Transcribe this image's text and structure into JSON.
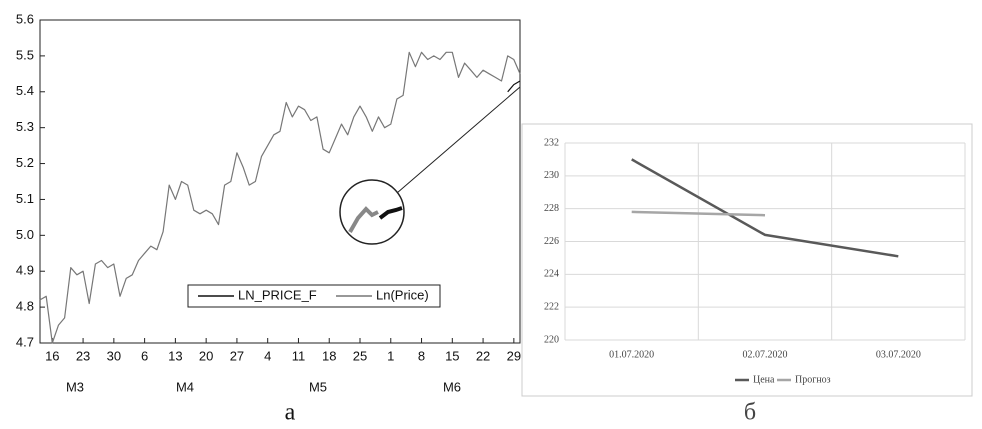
{
  "chart_data": [
    {
      "type": "line",
      "caption": "а",
      "categories": [
        null,
        null,
        "16",
        null,
        null,
        null,
        null,
        "23",
        null,
        null,
        null,
        null,
        "30",
        null,
        null,
        null,
        null,
        "6",
        null,
        null,
        null,
        null,
        "13",
        null,
        null,
        null,
        null,
        "20",
        null,
        null,
        null,
        null,
        "27",
        null,
        null,
        null,
        null,
        "4",
        null,
        null,
        null,
        null,
        "11",
        null,
        null,
        null,
        null,
        "18",
        null,
        null,
        null,
        null,
        "25",
        null,
        null,
        null,
        null,
        "1",
        null,
        null,
        null,
        null,
        "8",
        null,
        null,
        null,
        null,
        "15",
        null,
        null,
        null,
        null,
        "22",
        null,
        null,
        null,
        null,
        "29",
        null
      ],
      "month_labels": [
        "M3",
        "M4",
        "M5",
        "M6"
      ],
      "series": [
        {
          "name": "LN_PRICE_F",
          "color": "#111111",
          "values": [
            null,
            null,
            null,
            null,
            null,
            null,
            null,
            null,
            null,
            null,
            null,
            null,
            null,
            null,
            null,
            null,
            null,
            null,
            null,
            null,
            null,
            null,
            null,
            null,
            null,
            null,
            null,
            null,
            null,
            null,
            null,
            null,
            null,
            null,
            null,
            null,
            null,
            null,
            null,
            null,
            null,
            null,
            null,
            null,
            null,
            null,
            null,
            null,
            null,
            null,
            null,
            null,
            null,
            null,
            null,
            null,
            null,
            null,
            null,
            null,
            null,
            null,
            null,
            null,
            null,
            null,
            null,
            null,
            null,
            null,
            null,
            null,
            null,
            null,
            null,
            null,
            5.4,
            5.42,
            5.43
          ]
        },
        {
          "name": "Ln(Price)",
          "color": "#777777",
          "values": [
            4.82,
            4.83,
            4.7,
            4.75,
            4.77,
            4.91,
            4.89,
            4.9,
            4.81,
            4.92,
            4.93,
            4.91,
            4.92,
            4.83,
            4.88,
            4.89,
            4.93,
            4.95,
            4.97,
            4.96,
            5.01,
            5.14,
            5.1,
            5.15,
            5.14,
            5.07,
            5.06,
            5.07,
            5.06,
            5.03,
            5.14,
            5.15,
            5.23,
            5.19,
            5.14,
            5.15,
            5.22,
            5.25,
            5.28,
            5.29,
            5.37,
            5.33,
            5.36,
            5.35,
            5.32,
            5.33,
            5.24,
            5.23,
            5.27,
            5.31,
            5.28,
            5.33,
            5.36,
            5.33,
            5.29,
            5.33,
            5.3,
            5.31,
            5.38,
            5.39,
            5.51,
            5.47,
            5.51,
            5.49,
            5.5,
            5.49,
            5.51,
            5.51,
            5.44,
            5.48,
            5.46,
            5.44,
            5.46,
            5.45,
            5.44,
            5.43,
            5.5,
            5.49,
            5.45
          ]
        }
      ],
      "ylim": [
        4.7,
        5.6
      ],
      "yticks": [
        4.7,
        4.8,
        4.9,
        {
          "value": 5.0,
          "label": "5.0"
        },
        5.1,
        5.2,
        5.3,
        5.4,
        5.5,
        5.6
      ],
      "grid": false,
      "legend": "bottom"
    },
    {
      "type": "line",
      "caption": "б",
      "categories": [
        "01.07.2020",
        "02.07.2020",
        "03.07.2020"
      ],
      "series": [
        {
          "name": "Цена",
          "color": "#595959",
          "values": [
            231,
            226.4,
            225.1
          ]
        },
        {
          "name": "Прогноз",
          "color": "#a6a6a6",
          "values": [
            227.8,
            227.6,
            null
          ]
        }
      ],
      "ylim": [
        220,
        232
      ],
      "yticks": [
        220,
        222,
        224,
        226,
        228,
        230,
        232
      ],
      "grid": true,
      "legend": "bottom"
    }
  ]
}
